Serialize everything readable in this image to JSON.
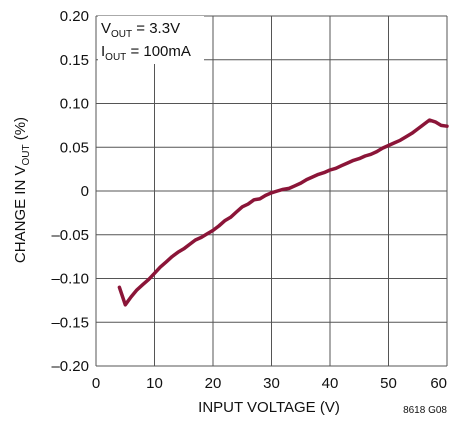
{
  "chart_data": {
    "type": "line",
    "xlabel": "INPUT VOLTAGE (V)",
    "ylabel": {
      "prefix": "CHANGE IN V",
      "sub": "OUT",
      "suffix": " (%)"
    },
    "xlim": [
      0,
      60
    ],
    "ylim": [
      -0.2,
      0.2
    ],
    "x_ticks": [
      {
        "value": 0,
        "label": "0"
      },
      {
        "value": 10,
        "label": "10"
      },
      {
        "value": 20,
        "label": "20"
      },
      {
        "value": 30,
        "label": "30"
      },
      {
        "value": 40,
        "label": "40"
      },
      {
        "value": 50,
        "label": "50"
      },
      {
        "value": 60,
        "label": "60"
      }
    ],
    "y_ticks": [
      {
        "value": 0.2,
        "label": "0.20"
      },
      {
        "value": 0.15,
        "label": "0.15"
      },
      {
        "value": 0.1,
        "label": "0.10"
      },
      {
        "value": 0.05,
        "label": "0.05"
      },
      {
        "value": 0,
        "label": "0"
      },
      {
        "value": -0.05,
        "label": "–0.05"
      },
      {
        "value": -0.1,
        "label": "–0.10"
      },
      {
        "value": -0.15,
        "label": "–0.15"
      },
      {
        "value": -0.2,
        "label": "–0.20"
      }
    ],
    "grid": true,
    "line_color": "#8b1538",
    "annotation": [
      {
        "prefix": "V",
        "sub": "OUT",
        "suffix": " = 3.3V"
      },
      {
        "prefix": "I",
        "sub": "OUT",
        "suffix": " = 100mA"
      }
    ],
    "figure_id": "8618 G08",
    "series": [
      {
        "x": [
          4,
          5,
          6,
          7,
          8,
          9,
          10,
          11,
          12,
          13,
          14,
          15,
          16,
          17,
          18,
          19,
          20,
          21,
          22,
          23,
          24,
          25,
          26,
          27,
          28,
          29,
          30,
          31,
          32,
          33,
          34,
          35,
          36,
          37,
          38,
          39,
          40,
          41,
          42,
          43,
          44,
          45,
          46,
          47,
          48,
          49,
          50,
          51,
          52,
          53,
          54,
          55,
          56,
          57,
          58,
          59,
          60
        ],
        "y": [
          -0.11,
          -0.13,
          -0.121,
          -0.113,
          -0.107,
          -0.101,
          -0.094,
          -0.087,
          -0.081,
          -0.075,
          -0.07,
          -0.066,
          -0.061,
          -0.056,
          -0.053,
          -0.049,
          -0.045,
          -0.04,
          -0.034,
          -0.03,
          -0.024,
          -0.018,
          -0.015,
          -0.01,
          -0.009,
          -0.005,
          -0.002,
          0.0,
          0.002,
          0.003,
          0.006,
          0.009,
          0.013,
          0.016,
          0.019,
          0.021,
          0.024,
          0.026,
          0.029,
          0.032,
          0.035,
          0.037,
          0.04,
          0.042,
          0.045,
          0.049,
          0.052,
          0.055,
          0.058,
          0.062,
          0.066,
          0.071,
          0.076,
          0.081,
          0.079,
          0.075,
          0.074
        ]
      }
    ]
  }
}
